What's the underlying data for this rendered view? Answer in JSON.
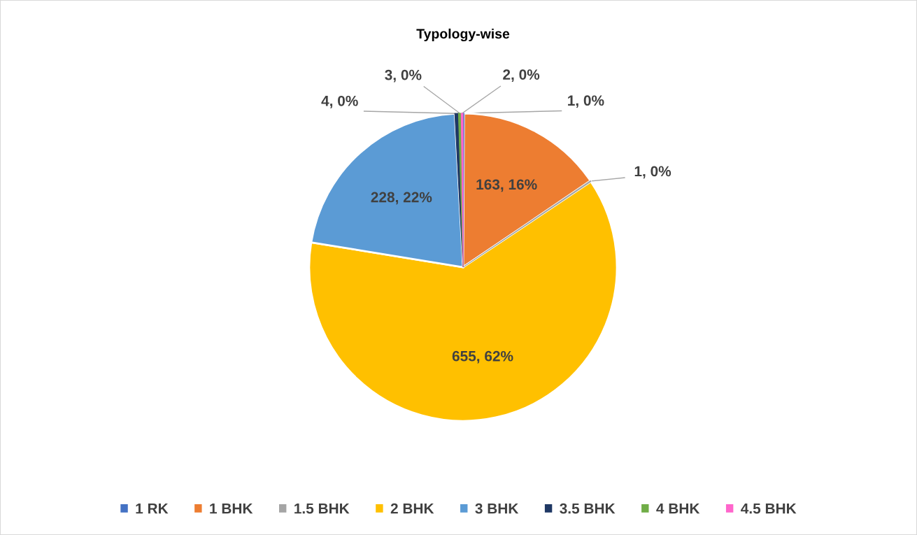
{
  "chart_data": {
    "type": "pie",
    "title": "Typology-wise",
    "categories": [
      "1 RK",
      "1 BHK",
      "1.5 BHK",
      "2 BHK",
      "3 BHK",
      "3.5 BHK",
      "4 BHK",
      "4.5 BHK"
    ],
    "values": [
      1,
      163,
      1,
      655,
      228,
      4,
      3,
      2
    ],
    "value_labels": [
      "1, 0%",
      "163, 16%",
      "1, 0%",
      "655, 62%",
      "228, 22%",
      "4, 0%",
      "3, 0%",
      "2, 0%"
    ],
    "colors": [
      "#4472c4",
      "#ed7d31",
      "#a5a5a5",
      "#ffc000",
      "#5b9bd5",
      "#1f3864",
      "#70ad47",
      "#ff66cc"
    ],
    "legend": "bottom"
  }
}
